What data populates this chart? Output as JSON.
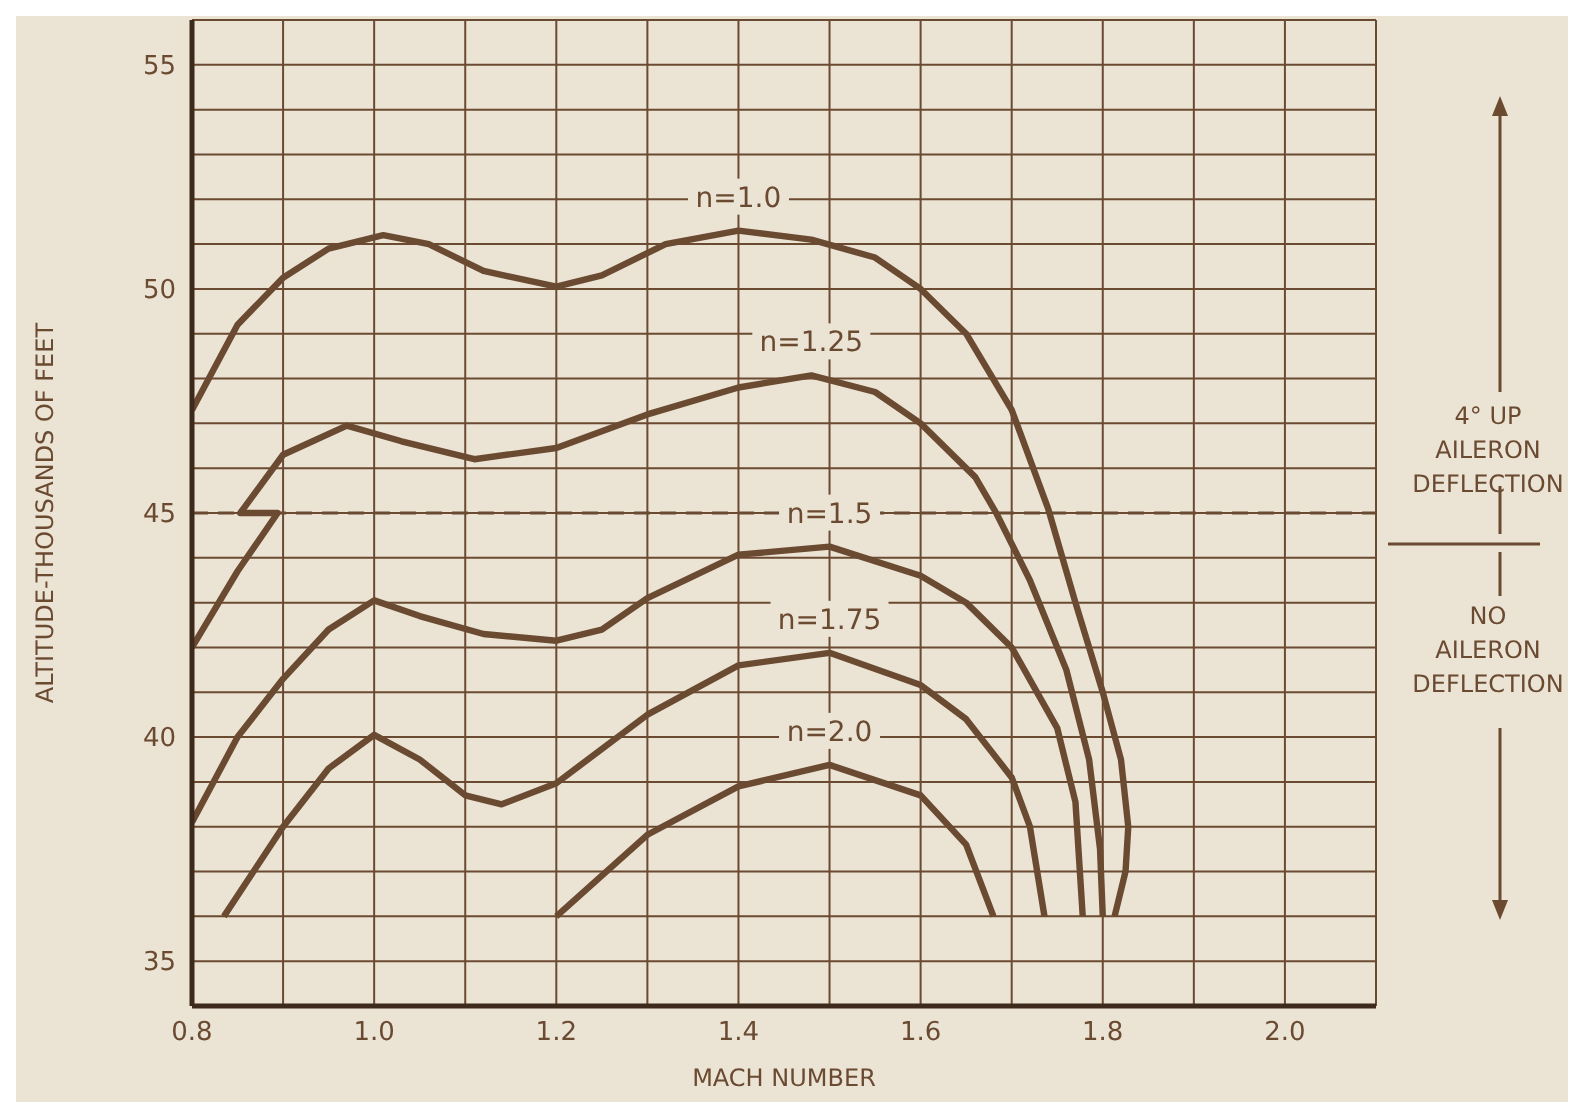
{
  "chart_data": {
    "type": "line",
    "xlabel": "MACH NUMBER",
    "ylabel": "ALTITUDE-THOUSANDS OF FEET",
    "xlim": [
      0.8,
      2.1
    ],
    "ylim": [
      34,
      56
    ],
    "xticks": [
      0.8,
      {
        "value": 0.9,
        "label": null
      },
      {
        "value": 1,
        "label": "1.0"
      },
      {
        "value": 1.1,
        "label": null
      },
      1.2,
      {
        "value": 1.3,
        "label": null
      },
      1.4,
      {
        "value": 1.5,
        "label": null
      },
      1.6,
      {
        "value": 1.7,
        "label": null
      },
      1.8,
      {
        "value": 1.9,
        "label": null
      },
      {
        "value": 2,
        "label": "2.0"
      },
      {
        "value": 2.1,
        "label": null
      }
    ],
    "yticks": [
      {
        "value": 34,
        "label": null
      },
      35,
      {
        "value": 36,
        "label": null
      },
      {
        "value": 37,
        "label": null
      },
      {
        "value": 38,
        "label": null
      },
      {
        "value": 39,
        "label": null
      },
      40,
      {
        "value": 41,
        "label": null
      },
      {
        "value": 42,
        "label": null
      },
      {
        "value": 43,
        "label": null
      },
      {
        "value": 44,
        "label": null
      },
      45,
      {
        "value": 46,
        "label": null
      },
      {
        "value": 47,
        "label": null
      },
      {
        "value": 48,
        "label": null
      },
      {
        "value": 49,
        "label": null
      },
      50,
      {
        "value": 51,
        "label": null
      },
      {
        "value": 52,
        "label": null
      },
      {
        "value": 53,
        "label": null
      },
      {
        "value": 54,
        "label": null
      },
      55,
      {
        "value": 56,
        "label": null
      }
    ],
    "grid": true,
    "marker": "none",
    "series": [
      {
        "name": "n=1.0",
        "color": "#6b4a32",
        "x": [
          0.8,
          0.85,
          0.9,
          0.95,
          1.01,
          1.06,
          1.12,
          1.2,
          1.25,
          1.32,
          1.4,
          1.48,
          1.55,
          1.6,
          1.65,
          1.7,
          1.74,
          1.77,
          1.8,
          1.82,
          1.828,
          1.825,
          1.813
        ],
        "values": [
          47.3,
          49.2,
          50.25,
          50.9,
          51.2,
          51.0,
          50.4,
          50.05,
          50.3,
          51.0,
          51.3,
          51.1,
          50.7,
          50.0,
          49.0,
          47.3,
          45.1,
          43.0,
          41.0,
          39.5,
          38.0,
          37.0,
          36.0
        ]
      },
      {
        "name": "n=1.25",
        "color": "#6b4a32",
        "x": [
          0.8,
          0.85,
          0.894,
          0.853,
          0.9,
          0.97,
          1.03,
          1.11,
          1.2,
          1.3,
          1.4,
          1.48,
          1.55,
          1.6,
          1.66,
          1.683,
          1.72,
          1.76,
          1.785,
          1.797,
          1.8
        ],
        "values": [
          42.0,
          43.7,
          45.0,
          45.0,
          46.3,
          46.95,
          46.6,
          46.2,
          46.45,
          47.2,
          47.8,
          48.07,
          47.7,
          47.0,
          45.8,
          45.0,
          43.5,
          41.5,
          39.5,
          37.5,
          36.0
        ]
      },
      {
        "name": "n=1.5",
        "color": "#6b4a32",
        "x": [
          0.8,
          0.85,
          0.9,
          0.95,
          1.0,
          1.05,
          1.12,
          1.2,
          1.25,
          1.3,
          1.4,
          1.5,
          1.6,
          1.65,
          1.7,
          1.75,
          1.77,
          1.778
        ],
        "values": [
          38.1,
          40.0,
          41.3,
          42.4,
          43.05,
          42.7,
          42.3,
          42.15,
          42.4,
          43.1,
          44.07,
          44.25,
          43.6,
          43.0,
          42.0,
          40.2,
          38.55,
          36.0
        ]
      },
      {
        "name": "n=1.75",
        "color": "#6b4a32",
        "x": [
          0.835,
          0.9,
          0.95,
          1.0,
          1.05,
          1.1,
          1.14,
          1.2,
          1.3,
          1.4,
          1.5,
          1.6,
          1.65,
          1.7,
          1.72,
          1.736
        ],
        "values": [
          36.0,
          38.0,
          39.3,
          40.05,
          39.5,
          38.7,
          38.5,
          38.97,
          40.5,
          41.6,
          41.88,
          41.16,
          40.4,
          39.1,
          38.0,
          36.0
        ]
      },
      {
        "name": "n=2.0",
        "color": "#6b4a32",
        "x": [
          1.2,
          1.3,
          1.4,
          1.5,
          1.6,
          1.65,
          1.68
        ],
        "values": [
          36.0,
          37.82,
          38.9,
          39.38,
          38.7,
          37.6,
          36.0
        ]
      }
    ],
    "ref_lines": [
      {
        "axis": "y",
        "value": 45,
        "color": "#6b4a32",
        "line_style": "dashed"
      }
    ],
    "annotations": [
      "4° UP\nAILERON\nDEFLECTION",
      "NO\nAILERON\nDEFLECTION"
    ]
  }
}
